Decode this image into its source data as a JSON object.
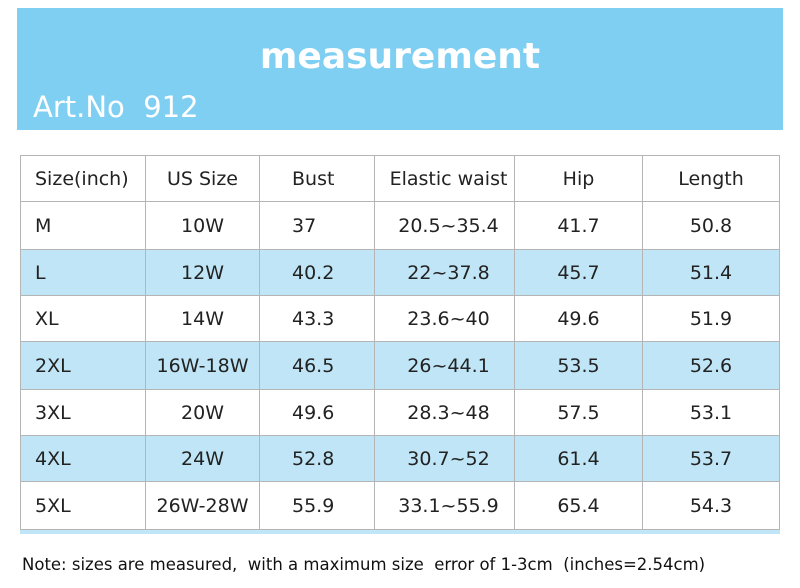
{
  "header": {
    "title": "measurement",
    "art_no": "Art.No  912"
  },
  "table": {
    "columns": [
      "Size(inch)",
      "US Size",
      "Bust",
      "Elastic waist",
      "Hip",
      "Length"
    ],
    "rows": [
      [
        "M",
        "10W",
        "37",
        "20.5~35.4",
        "41.7",
        "50.8"
      ],
      [
        "L",
        "12W",
        "40.2",
        "22~37.8",
        "45.7",
        "51.4"
      ],
      [
        "XL",
        "14W",
        "43.3",
        "23.6~40",
        "49.6",
        "51.9"
      ],
      [
        "2XL",
        "16W-18W",
        "46.5",
        "26~44.1",
        "53.5",
        "52.6"
      ],
      [
        "3XL",
        "20W",
        "49.6",
        "28.3~48",
        "57.5",
        "53.1"
      ],
      [
        "4XL",
        "24W",
        "52.8",
        "30.7~52",
        "61.4",
        "53.7"
      ],
      [
        "5XL",
        "26W-28W",
        "55.9",
        "33.1~55.9",
        "65.4",
        "54.3"
      ]
    ]
  },
  "note": "Note: sizes are measured,  with a maximum size  error of 1-3cm  (inches=2.54cm)"
}
